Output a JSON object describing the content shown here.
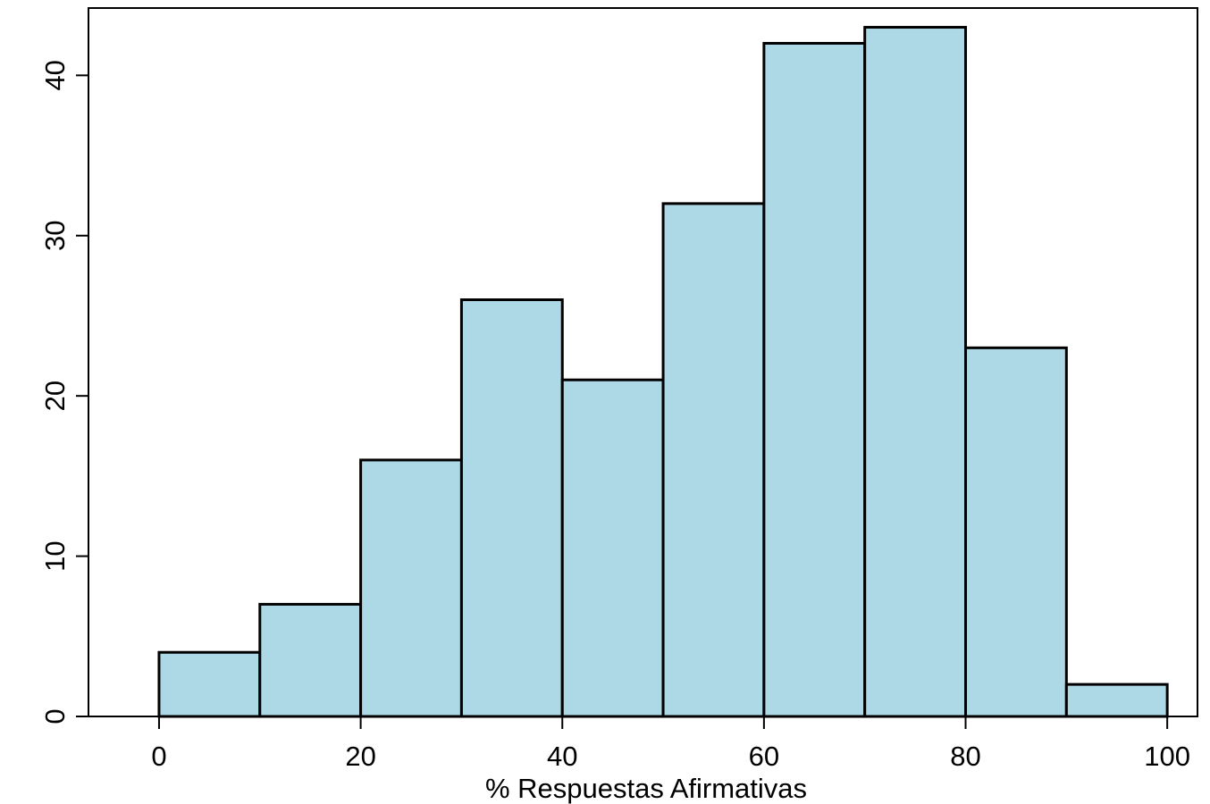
{
  "chart_data": {
    "type": "bar",
    "title": "",
    "xlabel": "% Respuestas Afirmativas",
    "ylabel": "",
    "bins": [
      {
        "x0": 0,
        "x1": 10,
        "count": 4
      },
      {
        "x0": 10,
        "x1": 20,
        "count": 7
      },
      {
        "x0": 20,
        "x1": 30,
        "count": 16
      },
      {
        "x0": 30,
        "x1": 40,
        "count": 26
      },
      {
        "x0": 40,
        "x1": 50,
        "count": 21
      },
      {
        "x0": 50,
        "x1": 60,
        "count": 32
      },
      {
        "x0": 60,
        "x1": 70,
        "count": 42
      },
      {
        "x0": 70,
        "x1": 80,
        "count": 43
      },
      {
        "x0": 80,
        "x1": 90,
        "count": 23
      },
      {
        "x0": 90,
        "x1": 100,
        "count": 2
      }
    ],
    "xticks": [
      "0",
      "20",
      "40",
      "60",
      "80",
      "100"
    ],
    "yticks": [
      "0",
      "10",
      "20",
      "30",
      "40"
    ],
    "xlim": [
      -7,
      103
    ],
    "ylim": [
      0,
      44.2
    ],
    "grid": false,
    "bar_fill": "#add8e6",
    "bar_stroke": "#000000"
  }
}
